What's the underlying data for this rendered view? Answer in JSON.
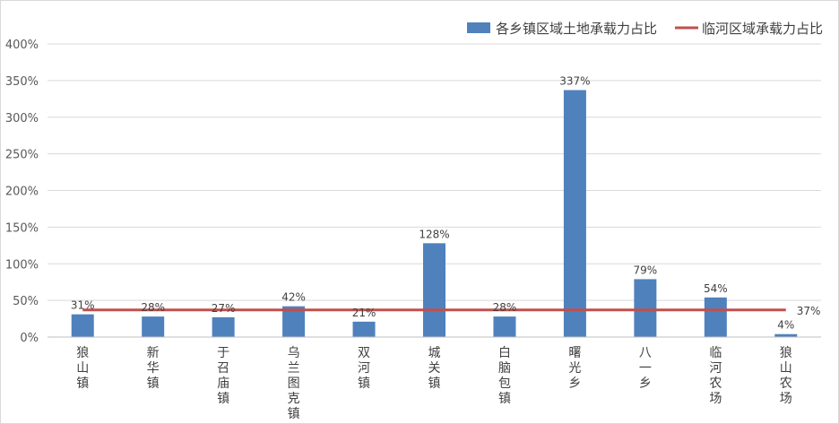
{
  "chart_data": {
    "type": "bar",
    "categories": [
      "狼山镇",
      "新华镇",
      "于召庙镇",
      "乌兰图克镇",
      "双河镇",
      "城关镇",
      "白脑包镇",
      "曙光乡",
      "八一乡",
      "临河农场",
      "狼山农场"
    ],
    "series": [
      {
        "name": "各乡镇区域土地承载力占比",
        "type": "bar",
        "values": [
          31,
          28,
          27,
          42,
          21,
          128,
          28,
          337,
          79,
          54,
          4
        ],
        "labels": [
          "31%",
          "28%",
          "27%",
          "42%",
          "21%",
          "128%",
          "28%",
          "337%",
          "79%",
          "54%",
          "4%"
        ],
        "color": "#4f81bd"
      },
      {
        "name": "临河区域承载力占比",
        "type": "line",
        "value": 37,
        "label": "37%",
        "color": "#c0504d"
      }
    ],
    "y_ticks": [
      "0%",
      "50%",
      "100%",
      "150%",
      "200%",
      "250%",
      "300%",
      "350%",
      "400%"
    ],
    "ylim": [
      0,
      400
    ],
    "y_unit": "%",
    "grid": true,
    "legend_position": "top-right",
    "title": "",
    "xlabel": "",
    "ylabel": ""
  }
}
